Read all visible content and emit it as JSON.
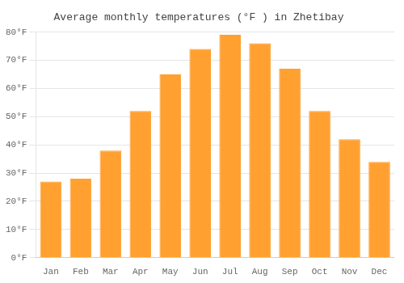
{
  "chart_data": {
    "type": "bar",
    "title": "Average monthly temperatures (°F ) in Zhetibay",
    "categories": [
      "Jan",
      "Feb",
      "Mar",
      "Apr",
      "May",
      "Jun",
      "Jul",
      "Aug",
      "Sep",
      "Oct",
      "Nov",
      "Dec"
    ],
    "values": [
      27,
      28,
      38,
      52,
      65,
      74,
      79,
      76,
      67,
      52,
      42,
      34
    ],
    "color": "#FFA030",
    "ylim": [
      0,
      80
    ],
    "yticks": [
      {
        "value": 0,
        "label": "0°F"
      },
      {
        "value": 10,
        "label": "10°F"
      },
      {
        "value": 20,
        "label": "20°F"
      },
      {
        "value": 30,
        "label": "30°F"
      },
      {
        "value": 40,
        "label": "40°F"
      },
      {
        "value": 50,
        "label": "50°F"
      },
      {
        "value": 60,
        "label": "60°F"
      },
      {
        "value": 70,
        "label": "70°F"
      },
      {
        "value": 80,
        "label": "80°F"
      }
    ],
    "grid": true
  }
}
